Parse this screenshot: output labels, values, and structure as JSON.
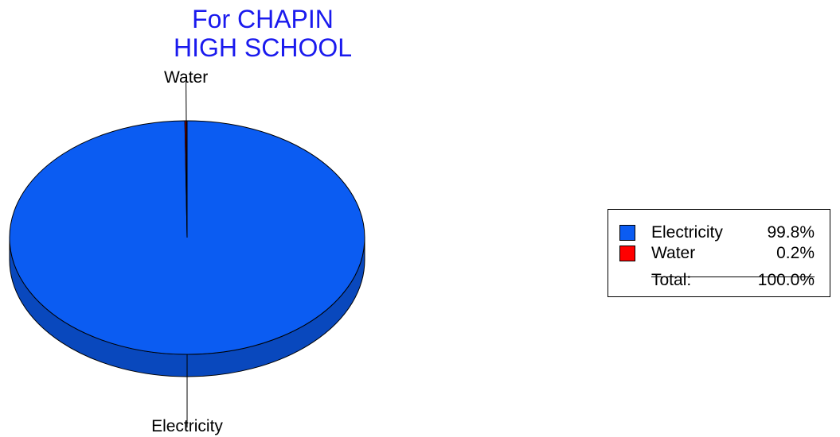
{
  "chart_data": {
    "type": "pie",
    "title": [
      "For CHAPIN",
      "HIGH SCHOOL"
    ],
    "slices": [
      {
        "label": "Electricity",
        "value": 99.8,
        "percent_label": "99.8%",
        "color": "#0b5cf2"
      },
      {
        "label": "Water",
        "value": 0.2,
        "percent_label": "0.2%",
        "color": "#ff0000"
      }
    ],
    "total": {
      "label": "Total:",
      "value": "100.0%"
    },
    "legend_position": "right",
    "style": "3d"
  }
}
